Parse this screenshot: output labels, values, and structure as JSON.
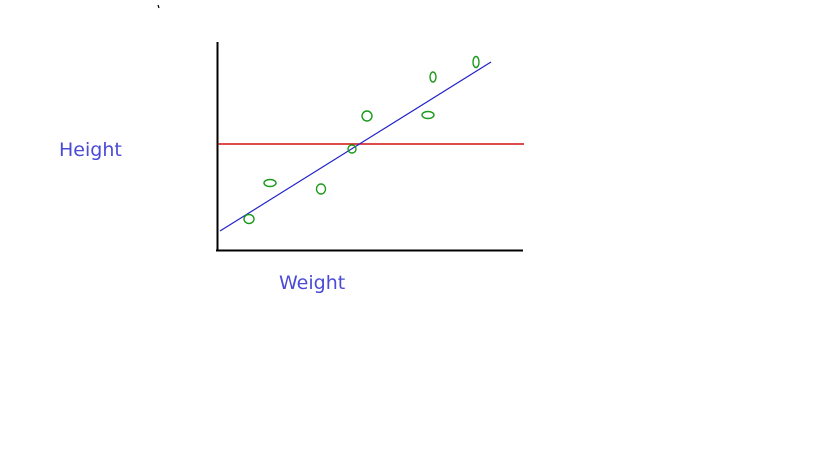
{
  "labels": {
    "y_axis": "Height",
    "x_axis": "Weight"
  },
  "colors": {
    "label_text": "#4a4ad6",
    "axis": "#000000",
    "points": "#1a9a1a",
    "regression_line": "#2020c8",
    "mean_line": "#d01010"
  }
}
